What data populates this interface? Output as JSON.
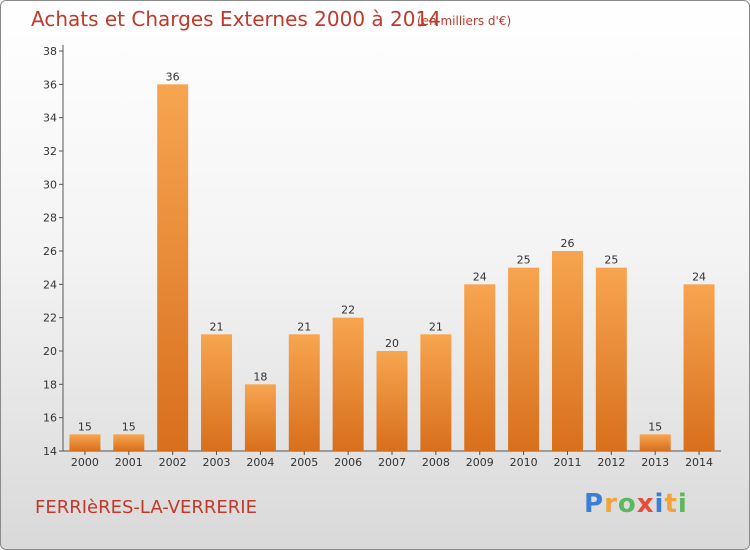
{
  "title": "Achats et Charges Externes 2000 à 2014",
  "subtitle": "(en milliers d'€)",
  "commune": "FERRIèRES-LA-VERRERIE",
  "logo": {
    "letters": [
      "P",
      "r",
      "o",
      "x",
      "i",
      "t",
      "i"
    ],
    "colors": [
      "#3a7fd5",
      "#f2a33a",
      "#5cb85c",
      "#e74c3c",
      "#3a7fd5",
      "#f2a33a",
      "#5cb85c"
    ]
  },
  "colors": {
    "bar_top": "#f7a550",
    "bar_bottom": "#d86f1c",
    "title": "#c0392b"
  },
  "chart_data": {
    "type": "bar",
    "title": "Achats et Charges Externes 2000 à 2014",
    "subtitle": "(en milliers d'€)",
    "categories": [
      "2000",
      "2001",
      "2002",
      "2003",
      "2004",
      "2005",
      "2006",
      "2007",
      "2008",
      "2009",
      "2010",
      "2011",
      "2012",
      "2013",
      "2014"
    ],
    "values": [
      15,
      15,
      36,
      21,
      18,
      21,
      22,
      20,
      21,
      24,
      25,
      26,
      25,
      15,
      24
    ],
    "ylim": [
      14,
      38
    ],
    "yticks": [
      14,
      16,
      18,
      20,
      22,
      24,
      26,
      28,
      30,
      32,
      34,
      36,
      38
    ],
    "grid": false,
    "legend": "none",
    "xlabel": "",
    "ylabel": ""
  }
}
